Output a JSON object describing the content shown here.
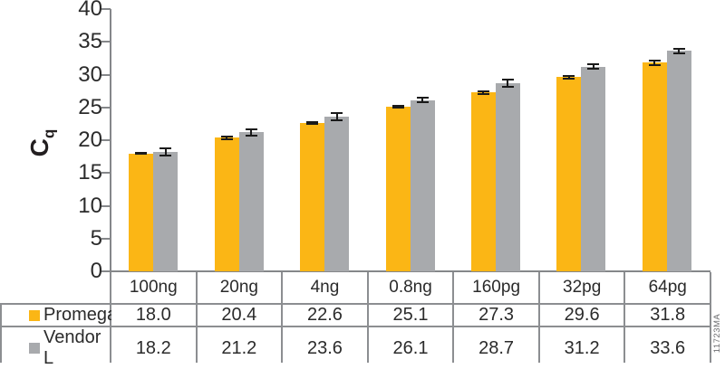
{
  "figure": {
    "id_label": "11723MA",
    "colors": {
      "promega_orange": "#FBB615",
      "vendor_gray": "#A8AAAD",
      "error_bar": "#1A1A1A",
      "axis_line": "#85878A",
      "table_border": "#8C8E91",
      "text": "#2B2B2B"
    }
  },
  "chart_data": {
    "type": "bar",
    "title": "",
    "ylabel_main": "C",
    "ylabel_sub": "q",
    "categories": [
      "100ng",
      "20ng",
      "4ng",
      "0.8ng",
      "160pg",
      "32pg",
      "64pg"
    ],
    "series": [
      {
        "name": "Promega",
        "color": "#FBB615",
        "values": [
          18.0,
          20.4,
          22.6,
          25.1,
          27.3,
          29.6,
          31.8
        ],
        "errors": [
          0.1,
          0.2,
          0.15,
          0.15,
          0.2,
          0.25,
          0.3
        ]
      },
      {
        "name": "Vendor L",
        "color": "#A8AAAD",
        "values": [
          18.2,
          21.2,
          23.6,
          26.1,
          28.7,
          31.2,
          33.6
        ],
        "errors": [
          0.5,
          0.45,
          0.5,
          0.35,
          0.55,
          0.35,
          0.4
        ]
      }
    ],
    "ylim": [
      0,
      40
    ],
    "yticks": [
      0,
      5,
      10,
      15,
      20,
      25,
      30,
      35,
      40
    ],
    "grid": false,
    "legend_position": "table-left",
    "value_decimals": 1
  }
}
